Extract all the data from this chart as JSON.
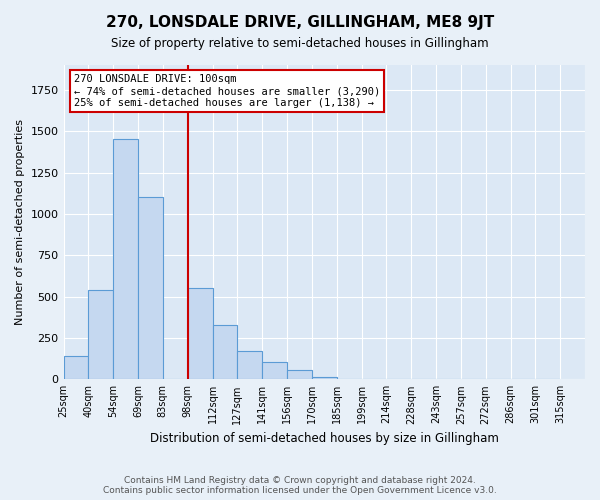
{
  "title": "270, LONSDALE DRIVE, GILLINGHAM, ME8 9JT",
  "subtitle": "Size of property relative to semi-detached houses in Gillingham",
  "xlabel": "Distribution of semi-detached houses by size in Gillingham",
  "ylabel": "Number of semi-detached properties",
  "footnote1": "Contains HM Land Registry data © Crown copyright and database right 2024.",
  "footnote2": "Contains public sector information licensed under the Open Government Licence v3.0.",
  "bin_labels": [
    "25sqm",
    "40sqm",
    "54sqm",
    "69sqm",
    "83sqm",
    "98sqm",
    "112sqm",
    "127sqm",
    "141sqm",
    "156sqm",
    "170sqm",
    "185sqm",
    "199sqm",
    "214sqm",
    "228sqm",
    "243sqm",
    "257sqm",
    "272sqm",
    "286sqm",
    "301sqm",
    "315sqm"
  ],
  "bar_values": [
    140,
    540,
    1450,
    1100,
    0,
    550,
    330,
    170,
    105,
    55,
    15,
    0,
    0,
    0,
    0,
    0,
    0,
    0,
    0,
    0
  ],
  "bar_color": "#c5d8f0",
  "bar_edge_color": "#5b9bd5",
  "vline_x": 5,
  "vline_color": "#cc0000",
  "ylim": [
    0,
    1900
  ],
  "annotation_title": "270 LONSDALE DRIVE: 100sqm",
  "annotation_line1": "← 74% of semi-detached houses are smaller (3,290)",
  "annotation_line2": "25% of semi-detached houses are larger (1,138) →",
  "annotation_box_color": "#cc0000",
  "background_color": "#e8f0f8",
  "plot_bg_color": "#dce8f5"
}
